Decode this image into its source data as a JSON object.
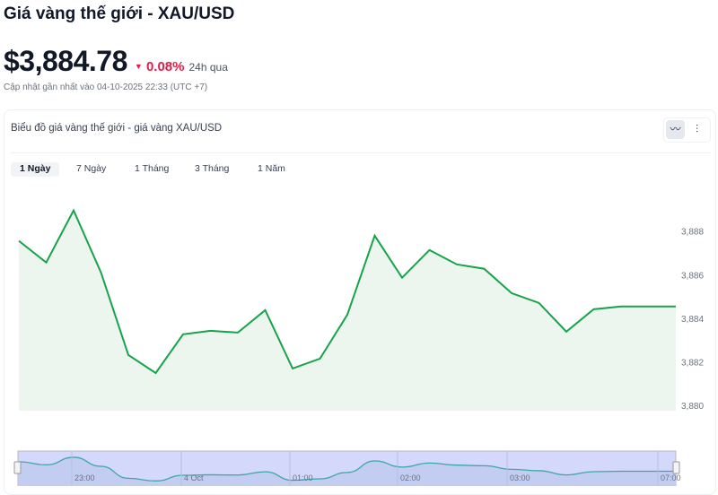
{
  "header": {
    "title": "Giá vàng thế giới - XAU/USD",
    "price": "$3,884.78",
    "change": "0.08%",
    "change_direction": "down",
    "change_color": "#e11d48",
    "change_label": "24h qua",
    "updated": "Cập nhật gần nhất vào 04-10-2025 22:33 (UTC +7)"
  },
  "card": {
    "title": "Biểu đồ giá vàng thế giới - giá vàng XAU/USD",
    "chart_types": [
      {
        "icon": "line-chart-icon",
        "active": true
      },
      {
        "icon": "candlestick-icon",
        "active": false
      }
    ]
  },
  "tabs": [
    {
      "label": "1 Ngày",
      "active": true
    },
    {
      "label": "7 Ngày"
    },
    {
      "label": "1 Tháng"
    },
    {
      "label": "3 Tháng"
    },
    {
      "label": "1 Năm"
    }
  ],
  "chart_data": {
    "type": "area",
    "line_color": "#16a34a",
    "fill_color": "#ecf6ef",
    "values": [
      3887.55,
      3886.56,
      3888.95,
      3886.1,
      3882.31,
      3881.48,
      3883.26,
      3883.42,
      3883.34,
      3884.37,
      3881.69,
      3882.14,
      3884.16,
      3887.79,
      3885.86,
      3887.13,
      3886.47,
      3886.27,
      3885.15,
      3884.7,
      3883.38,
      3884.41,
      3884.54,
      3884.54,
      3884.54
    ],
    "y_ticks": [
      "3,888",
      "3,886",
      "3,884",
      "3,882",
      "3,880"
    ],
    "y_tick_values": [
      3888,
      3886,
      3884,
      3882,
      3880
    ],
    "ylim": [
      3879.75,
      3890.5
    ],
    "y_axis_position": "right",
    "grid": false,
    "navigator": {
      "x_ticks": [
        "23:00",
        "4 Oct",
        "01:00",
        "02:00",
        "03:00",
        "07:00"
      ],
      "fill_color": "#d4d8fb",
      "line_color": "#3ea6a6"
    }
  }
}
